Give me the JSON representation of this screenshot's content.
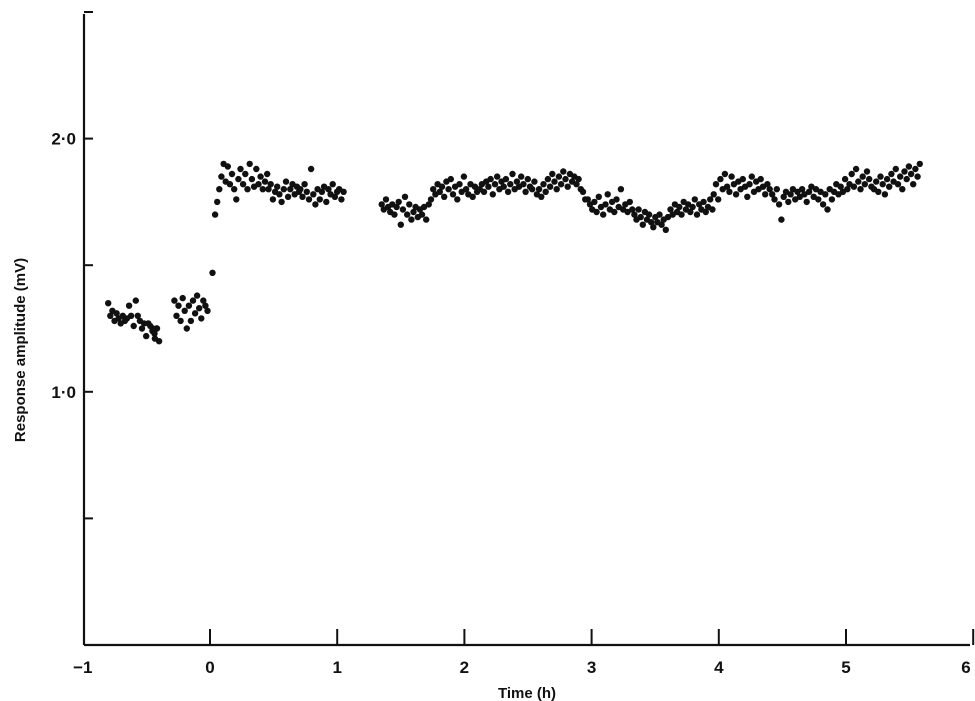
{
  "chart_data": {
    "type": "scatter",
    "xlabel": "Time (h)",
    "ylabel": "Response amplitude (mV)",
    "xlim": [
      -1,
      6
    ],
    "ylim": [
      0,
      2.5
    ],
    "x_ticks": [
      -1,
      0,
      1,
      2,
      3,
      4,
      5,
      6
    ],
    "x_tick_labels": [
      "−1",
      "0",
      "1",
      "2",
      "3",
      "4",
      "5",
      "6"
    ],
    "y_ticks": [
      0.5,
      1.0,
      1.5,
      2.0,
      2.5
    ],
    "y_tick_labels": [
      "",
      "1·0",
      "",
      "2·0",
      ""
    ],
    "grid": false,
    "legend": "none",
    "marker_color": "#111111",
    "segments": [
      {
        "x_start": -0.8,
        "x_end": -0.62,
        "y": [
          1.35,
          1.3,
          1.32,
          1.28,
          1.31,
          1.29,
          1.27,
          1.3,
          1.28,
          1.29,
          1.34,
          1.3
        ]
      },
      {
        "x_start": -0.6,
        "x_end": -0.42,
        "y": [
          1.26,
          1.36,
          1.3,
          1.28,
          1.25,
          1.27,
          1.22,
          1.27,
          1.26,
          1.24,
          1.23,
          1.25
        ]
      },
      {
        "x_start": -0.45,
        "x_end": -0.4,
        "y": [
          1.25,
          1.21,
          1.25,
          1.2
        ]
      },
      {
        "x_start": -0.28,
        "x_end": -0.02,
        "y": [
          1.36,
          1.3,
          1.34,
          1.28,
          1.37,
          1.32,
          1.25,
          1.34,
          1.28,
          1.36,
          1.31,
          1.38,
          1.33,
          1.29,
          1.36,
          1.34,
          1.32
        ]
      },
      {
        "x_start": 0.02,
        "x_end": 0.02,
        "y": [
          1.47
        ]
      },
      {
        "x_start": 0.04,
        "x_end": 0.24,
        "y": [
          1.7,
          1.75,
          1.8,
          1.85,
          1.9,
          1.83,
          1.89,
          1.82,
          1.86,
          1.8,
          1.76,
          1.84,
          1.88
        ]
      },
      {
        "x_start": 0.26,
        "x_end": 0.45,
        "y": [
          1.82,
          1.86,
          1.8,
          1.9,
          1.84,
          1.81,
          1.88,
          1.82,
          1.85,
          1.8,
          1.83,
          1.86
        ]
      },
      {
        "x_start": 0.46,
        "x_end": 0.7,
        "y": [
          1.8,
          1.82,
          1.76,
          1.79,
          1.81,
          1.78,
          1.75,
          1.8,
          1.83,
          1.77,
          1.8,
          1.82,
          1.78,
          1.81,
          1.79
        ]
      },
      {
        "x_start": 0.71,
        "x_end": 1.05,
        "y": [
          1.8,
          1.77,
          1.82,
          1.79,
          1.76,
          1.88,
          1.78,
          1.74,
          1.8,
          1.76,
          1.79,
          1.81,
          1.75,
          1.8,
          1.78,
          1.82,
          1.77,
          1.79,
          1.8,
          1.76,
          1.79
        ]
      },
      {
        "x_start": 1.35,
        "x_end": 1.7,
        "y": [
          1.74,
          1.72,
          1.76,
          1.73,
          1.71,
          1.74,
          1.7,
          1.73,
          1.75,
          1.66,
          1.72,
          1.77,
          1.7,
          1.74,
          1.68,
          1.71,
          1.73,
          1.69,
          1.72,
          1.7,
          1.73,
          1.68
        ]
      },
      {
        "x_start": 1.72,
        "x_end": 2.1,
        "y": [
          1.74,
          1.76,
          1.8,
          1.78,
          1.82,
          1.79,
          1.81,
          1.77,
          1.83,
          1.8,
          1.84,
          1.78,
          1.81,
          1.76,
          1.82,
          1.79,
          1.85,
          1.8,
          1.78,
          1.82,
          1.77,
          1.81,
          1.79
        ]
      },
      {
        "x_start": 2.12,
        "x_end": 2.55,
        "y": [
          1.8,
          1.82,
          1.79,
          1.83,
          1.81,
          1.84,
          1.78,
          1.82,
          1.85,
          1.8,
          1.83,
          1.81,
          1.84,
          1.79,
          1.82,
          1.86,
          1.8,
          1.83,
          1.81,
          1.85,
          1.82,
          1.79,
          1.84,
          1.81,
          1.8,
          1.83
        ]
      },
      {
        "x_start": 2.57,
        "x_end": 2.95,
        "y": [
          1.78,
          1.8,
          1.77,
          1.82,
          1.79,
          1.84,
          1.81,
          1.86,
          1.83,
          1.8,
          1.85,
          1.82,
          1.87,
          1.84,
          1.81,
          1.86,
          1.83,
          1.85,
          1.82,
          1.84,
          1.8,
          1.79,
          1.76
        ]
      },
      {
        "x_start": 2.97,
        "x_end": 3.3,
        "y": [
          1.76,
          1.74,
          1.72,
          1.75,
          1.71,
          1.77,
          1.73,
          1.7,
          1.74,
          1.78,
          1.72,
          1.75,
          1.71,
          1.76,
          1.73,
          1.8,
          1.72,
          1.74,
          1.71,
          1.75
        ]
      },
      {
        "x_start": 3.32,
        "x_end": 3.6,
        "y": [
          1.72,
          1.7,
          1.68,
          1.72,
          1.69,
          1.66,
          1.71,
          1.68,
          1.7,
          1.67,
          1.65,
          1.69,
          1.67,
          1.7,
          1.66,
          1.68,
          1.64,
          1.69
        ]
      },
      {
        "x_start": 3.62,
        "x_end": 3.95,
        "y": [
          1.72,
          1.7,
          1.74,
          1.71,
          1.73,
          1.7,
          1.75,
          1.72,
          1.74,
          1.71,
          1.73,
          1.76,
          1.7,
          1.74,
          1.72,
          1.75,
          1.71,
          1.73,
          1.76,
          1.72
        ]
      },
      {
        "x_start": 3.96,
        "x_end": 4.4,
        "y": [
          1.78,
          1.82,
          1.76,
          1.84,
          1.8,
          1.86,
          1.81,
          1.79,
          1.85,
          1.82,
          1.78,
          1.83,
          1.8,
          1.84,
          1.81,
          1.77,
          1.82,
          1.85,
          1.79,
          1.83,
          1.8,
          1.84,
          1.81,
          1.78,
          1.82,
          1.8
        ]
      },
      {
        "x_start": 4.42,
        "x_end": 4.8,
        "y": [
          1.78,
          1.76,
          1.8,
          1.74,
          1.68,
          1.77,
          1.79,
          1.75,
          1.78,
          1.8,
          1.76,
          1.79,
          1.77,
          1.8,
          1.78,
          1.75,
          1.79,
          1.81,
          1.77,
          1.8,
          1.76,
          1.79
        ]
      },
      {
        "x_start": 4.82,
        "x_end": 5.2,
        "y": [
          1.74,
          1.78,
          1.72,
          1.8,
          1.76,
          1.79,
          1.82,
          1.78,
          1.81,
          1.79,
          1.84,
          1.8,
          1.82,
          1.86,
          1.81,
          1.88,
          1.83,
          1.8,
          1.85,
          1.82,
          1.87,
          1.84,
          1.81
        ]
      },
      {
        "x_start": 5.22,
        "x_end": 5.58,
        "y": [
          1.8,
          1.83,
          1.79,
          1.85,
          1.82,
          1.78,
          1.84,
          1.81,
          1.86,
          1.83,
          1.88,
          1.82,
          1.85,
          1.8,
          1.87,
          1.84,
          1.89,
          1.86,
          1.82,
          1.88,
          1.85,
          1.9
        ]
      }
    ]
  }
}
